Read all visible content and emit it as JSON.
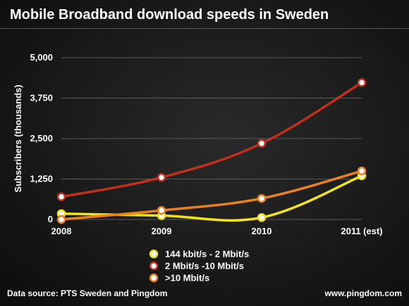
{
  "chart_data": {
    "type": "line",
    "title": "Mobile Broadband download speeds in Sweden",
    "xlabel": "",
    "ylabel": "Subscribers (thousands)",
    "categories": [
      "2008",
      "2009",
      "2010",
      "2011 (est)"
    ],
    "ylim": [
      0,
      5000
    ],
    "yticks": [
      "0",
      "1,250",
      "2,500",
      "3,750",
      "5,000"
    ],
    "ytick_values": [
      0,
      1250,
      2500,
      3750,
      5000
    ],
    "grid": true,
    "legend_position": "bottom-center",
    "series": [
      {
        "name": "144 kbit/s - 2 Mbit/s",
        "color": "#f2e21a",
        "values": [
          180,
          120,
          60,
          1350
        ]
      },
      {
        "name": "2 Mbit/s -10 Mbit/s",
        "color": "#c0301c",
        "values": [
          700,
          1300,
          2350,
          4230
        ]
      },
      {
        "name": ">10 Mbit/s",
        "color": "#e8821e",
        "values": [
          0,
          280,
          650,
          1500
        ]
      }
    ]
  },
  "footer": {
    "source": "Data source: PTS Sweden and Pingdom",
    "site": "www.pingdom.com"
  }
}
